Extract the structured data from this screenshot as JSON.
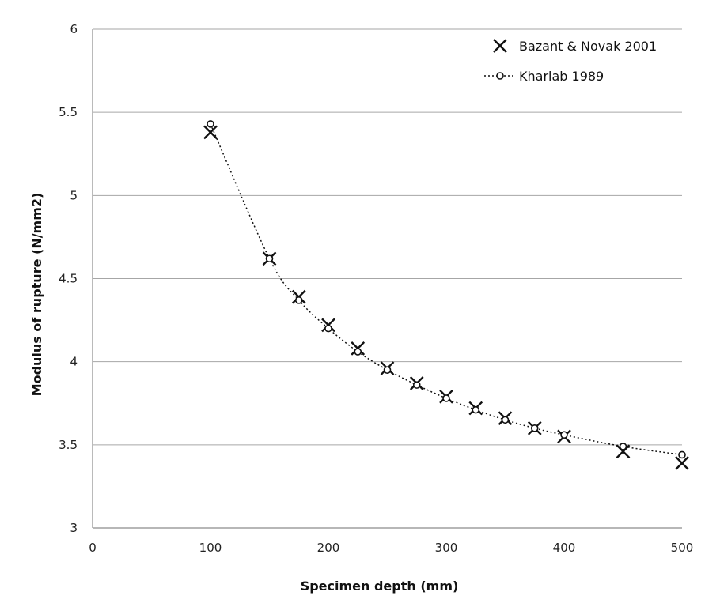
{
  "chart_data": {
    "type": "scatter",
    "xlabel": "Specimen depth (mm)",
    "ylabel": "Modulus of rupture (N/mm2)",
    "xlim": [
      0,
      500
    ],
    "ylim": [
      3,
      6
    ],
    "x_ticks": [
      "0",
      "100",
      "200",
      "300",
      "400",
      "500"
    ],
    "y_ticks": [
      "3",
      "3.5",
      "4",
      "4.5",
      "5",
      "5.5",
      "6"
    ],
    "grid": "horizontal",
    "legend_position": "top-right",
    "series": [
      {
        "name": "Bazant & Novak 2001",
        "marker": "x",
        "line": "none",
        "color": "#111111",
        "x": [
          100,
          150,
          175,
          200,
          225,
          250,
          275,
          300,
          325,
          350,
          375,
          400,
          450,
          500
        ],
        "y": [
          5.38,
          4.62,
          4.39,
          4.22,
          4.08,
          3.96,
          3.87,
          3.79,
          3.72,
          3.66,
          3.6,
          3.55,
          3.46,
          3.39
        ]
      },
      {
        "name": "Kharlab 1989",
        "marker": "circle",
        "line": "dotted",
        "color": "#111111",
        "x": [
          100,
          150,
          175,
          200,
          225,
          250,
          275,
          300,
          325,
          350,
          375,
          400,
          450,
          500
        ],
        "y": [
          5.43,
          4.62,
          4.37,
          4.2,
          4.06,
          3.95,
          3.86,
          3.78,
          3.71,
          3.65,
          3.6,
          3.56,
          3.49,
          3.44
        ]
      }
    ]
  }
}
